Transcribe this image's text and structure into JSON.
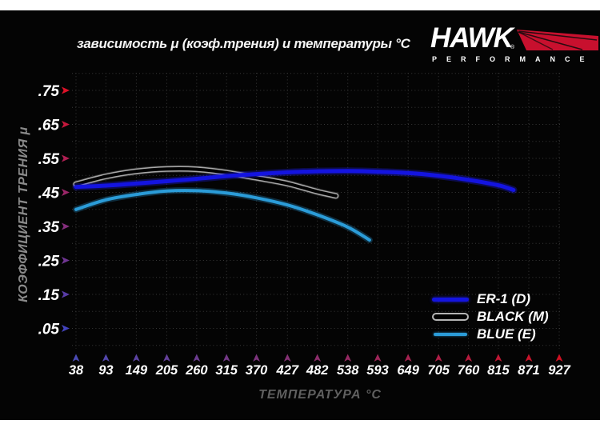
{
  "page": {
    "title": "зависимость μ (коэф.трения) и температуры °C"
  },
  "logo": {
    "brand": "HAWK",
    "registered": "®",
    "tagline": "PERFORMANCE",
    "wing_color": "#c8102e"
  },
  "chart_data": {
    "type": "line",
    "title": "зависимость μ (коэф.трения) и температуры °C",
    "xlabel": "ТЕМПЕРАТУРА °C",
    "ylabel": "КОЭФФИЦИЕНТ ТРЕНИЯ μ",
    "x_unit": "°C",
    "xlim": [
      38,
      927
    ],
    "ylim": [
      0,
      0.8
    ],
    "x_ticks": [
      38,
      93,
      149,
      205,
      260,
      315,
      370,
      427,
      482,
      538,
      593,
      649,
      705,
      760,
      815,
      871,
      927
    ],
    "y_ticks": [
      0.75,
      0.65,
      0.55,
      0.45,
      0.35,
      0.25,
      0.15,
      0.05
    ],
    "y_tick_labels": [
      ".75",
      ".65",
      ".55",
      ".45",
      ".35",
      ".25",
      ".15",
      ".05"
    ],
    "grid": "dotted",
    "legend_position": "bottom-right",
    "series": [
      {
        "name": "ER-1 (D)",
        "color": "#1414e0",
        "glow": "#2222ff",
        "points": [
          [
            38,
            0.466
          ],
          [
            93,
            0.47
          ],
          [
            149,
            0.476
          ],
          [
            205,
            0.483
          ],
          [
            260,
            0.49
          ],
          [
            315,
            0.498
          ],
          [
            370,
            0.504
          ],
          [
            427,
            0.509
          ],
          [
            482,
            0.512
          ],
          [
            538,
            0.513
          ],
          [
            593,
            0.511
          ],
          [
            649,
            0.507
          ],
          [
            705,
            0.499
          ],
          [
            760,
            0.487
          ],
          [
            815,
            0.471
          ],
          [
            843,
            0.457
          ]
        ]
      },
      {
        "name": "BLACK (M)",
        "color": "#000000",
        "outline": "#a8a8a8",
        "points": [
          [
            38,
            0.474
          ],
          [
            93,
            0.497
          ],
          [
            149,
            0.512
          ],
          [
            205,
            0.519
          ],
          [
            260,
            0.518
          ],
          [
            315,
            0.508
          ],
          [
            370,
            0.493
          ],
          [
            427,
            0.476
          ],
          [
            482,
            0.452
          ],
          [
            516,
            0.44
          ]
        ]
      },
      {
        "name": "BLUE (E)",
        "color": "#2b9cd8",
        "glow": "#2b9cd8",
        "points": [
          [
            38,
            0.4
          ],
          [
            93,
            0.428
          ],
          [
            149,
            0.444
          ],
          [
            205,
            0.454
          ],
          [
            260,
            0.455
          ],
          [
            315,
            0.448
          ],
          [
            370,
            0.434
          ],
          [
            427,
            0.413
          ],
          [
            482,
            0.384
          ],
          [
            538,
            0.348
          ],
          [
            578,
            0.31
          ]
        ]
      }
    ],
    "axis_colors": {
      "y_top": "#dd1128",
      "y_bottom": "#4343bd",
      "x_left": "#4a4ab4",
      "x_right": "#cf1022"
    }
  },
  "legend": {
    "items": [
      "ER-1 (D)",
      "BLACK (M)",
      "BLUE (E)"
    ]
  }
}
